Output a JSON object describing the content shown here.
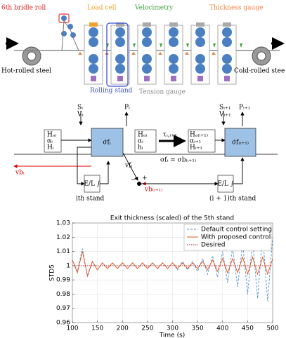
{
  "mill": {
    "bridle": "6th bridle roll",
    "load_cell": "Load cell",
    "velocimetry": "Velocimetry",
    "thickness_gauge": "Thickness gauge",
    "hot": "Hot-rolled steel",
    "cold": "Cold-rolled stee",
    "rolling_stand": "Rolling stand",
    "tension_gauge": "Tension gauge"
  },
  "block": {
    "s_i": "Sᵢ",
    "v_i": "Vᵢ",
    "p_i": "Pᵢ",
    "in_left": [
      "Hₐᵢ",
      "αᵢ",
      "Hᵢ"
    ],
    "stand_left": "σ̇fᵢ",
    "mid": [
      "Hₐᵢ",
      "αᵢ",
      "hᵢ"
    ],
    "tau": "τᵢ,ᵢ₊₁",
    "in_right": [
      "Hₐ₍ᵢ₊₁₎",
      "αᵢ₊₁",
      "Hᵢ₊₁"
    ],
    "s_i1": "Sᵢ₊₁",
    "v_i1": "Vᵢ₊₁",
    "p_i1": "Pᵢ₊₁",
    "stand_right": "σ̇f₍ᵢ₊₁₎",
    "sigma_eq": "σfᵢ = σb₍ᵢ₊₁₎",
    "v_fi": "vfᵢ",
    "v_bi": "vbᵢ",
    "v_b_i1": "vb₍ᵢ₊₁₎",
    "integral": "E/L ∫",
    "plus": "+",
    "minus": "−",
    "ith": "ith stand",
    "i1th": "(i + 1)th stand"
  },
  "chart_data": {
    "type": "line",
    "title": "Exit thickness (scaled) of the 5th stand",
    "x_label": "Time (s)",
    "y_label": "STD5",
    "x": [
      100,
      110,
      120,
      130,
      140,
      150,
      160,
      170,
      180,
      190,
      200,
      210,
      220,
      230,
      240,
      250,
      260,
      270,
      280,
      290,
      300,
      310,
      320,
      330,
      340,
      350,
      360,
      370,
      380,
      390,
      400,
      410,
      420,
      430,
      440,
      450,
      460,
      470,
      480,
      490,
      500
    ],
    "series": [
      {
        "name": "Default control setting",
        "color": "#4a90d9",
        "style": "dashed",
        "values": [
          1.004,
          0.996,
          1.012,
          0.992,
          1.003,
          0.997,
          1.002,
          0.998,
          1.002,
          0.998,
          1.002,
          0.998,
          1.002,
          0.998,
          1.002,
          0.998,
          1.002,
          0.998,
          1.002,
          0.998,
          1.002,
          0.997,
          1.003,
          0.997,
          1.003,
          0.996,
          1.005,
          0.994,
          1.007,
          0.992,
          1.01,
          0.988,
          1.013,
          0.985,
          1.016,
          0.98,
          1.018,
          0.977,
          1.022,
          0.975,
          1.02
        ]
      },
      {
        "name": "With proposed control",
        "color": "#e8541e",
        "style": "solid",
        "values": [
          1.004,
          0.995,
          1.01,
          0.993,
          1.003,
          0.997,
          1.002,
          0.998,
          1.002,
          0.998,
          1.002,
          0.998,
          1.002,
          0.998,
          1.002,
          0.998,
          1.002,
          0.998,
          1.002,
          0.998,
          1.002,
          0.998,
          1.002,
          0.998,
          1.002,
          0.998,
          1.003,
          0.997,
          1.004,
          0.996,
          1.005,
          0.995,
          1.005,
          0.995,
          1.006,
          0.994,
          1.006,
          0.994,
          1.006,
          0.994,
          1.005
        ]
      },
      {
        "name": "Desired",
        "color": "#b22222",
        "style": "dotted",
        "x": [
          100,
          500
        ],
        "values": [
          1,
          1
        ]
      }
    ],
    "xlim": [
      100,
      500
    ],
    "ylim": [
      0.96,
      1.03
    ],
    "xticks": [
      100,
      150,
      200,
      250,
      300,
      350,
      400,
      450,
      500
    ],
    "yticks": [
      0.96,
      0.97,
      0.98,
      0.99,
      1,
      1.01,
      1.02,
      1.03
    ],
    "grid": true,
    "legend": "upper right"
  }
}
